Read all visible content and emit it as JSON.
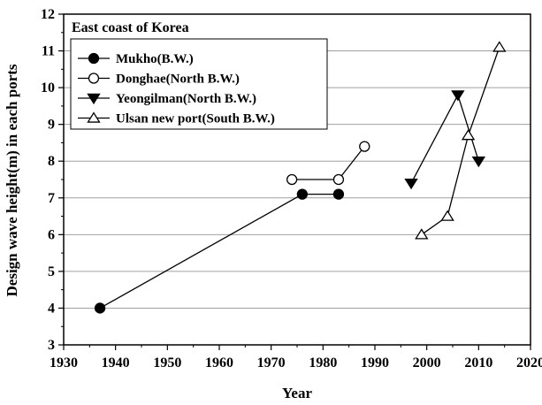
{
  "chart_data": {
    "type": "scatter",
    "annotation": "East coast of Korea",
    "xlabel": "Year",
    "ylabel": "Design wave height(m) in each ports",
    "xlim": [
      1930,
      2020
    ],
    "ylim": [
      3,
      12
    ],
    "xticks": [
      "1930",
      "1940",
      "1950",
      "1960",
      "1970",
      "1980",
      "1990",
      "2000",
      "2010",
      "2020"
    ],
    "yticks": [
      "3",
      "4",
      "5",
      "6",
      "7",
      "8",
      "9",
      "10",
      "11",
      "12"
    ],
    "grid": "horizontal",
    "legend_position": "upper-left",
    "series": [
      {
        "name": "Mukho(B.W.)",
        "marker": "filled-circle",
        "connected": true,
        "x": [
          1937,
          1976,
          1983
        ],
        "y": [
          4.0,
          7.1,
          7.1
        ]
      },
      {
        "name": "Donghae(North B.W.)",
        "marker": "open-circle",
        "connected": true,
        "x": [
          1974,
          1983,
          1988
        ],
        "y": [
          7.5,
          7.5,
          8.4
        ]
      },
      {
        "name": "Yeongilman(North B.W.)",
        "marker": "filled-triangle-down",
        "connected": true,
        "x": [
          1997,
          2006,
          2010
        ],
        "y": [
          7.4,
          9.8,
          8.0
        ]
      },
      {
        "name": "Ulsan new port(South B.W.)",
        "marker": "open-triangle-up",
        "connected": true,
        "x": [
          1999,
          2004,
          2008,
          2014
        ],
        "y": [
          6.0,
          6.5,
          8.7,
          11.1
        ]
      }
    ]
  }
}
